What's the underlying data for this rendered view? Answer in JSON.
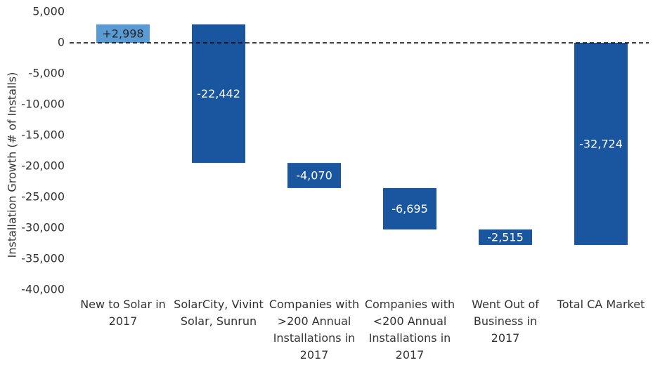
{
  "chart_data": {
    "type": "waterfall",
    "y_label": "Installation Growth (# of Installs)",
    "categories": [
      "New to Solar in 2017",
      "SolarCity, Vivint Solar, Sunrun",
      "Companies with >200 Annual Installations in 2017",
      "Companies with <200 Annual Installations in 2017",
      "Went Out of Business in 2017",
      "Total CA Market"
    ],
    "values": [
      2998,
      -22442,
      -4070,
      -6695,
      -2515,
      -32724
    ],
    "value_labels": [
      "+2,998",
      "-22,442",
      "-4,070",
      "-6,695",
      "-2,515",
      "-32,724"
    ],
    "is_total": [
      false,
      false,
      false,
      false,
      false,
      true
    ],
    "colors": [
      "#5b9bd5",
      "#1a55a0",
      "#1a55a0",
      "#1a55a0",
      "#1a55a0",
      "#1a55a0"
    ],
    "label_colors": [
      "#222222",
      "#ffffff",
      "#ffffff",
      "#ffffff",
      "#ffffff",
      "#ffffff"
    ],
    "ylim": [
      -40000,
      5000
    ],
    "yticks": [
      {
        "value": 5000,
        "label": "5,000"
      },
      0,
      {
        "value": -5000,
        "label": "-5,000"
      },
      {
        "value": -10000,
        "label": "-10,000"
      },
      {
        "value": -15000,
        "label": "-15,000"
      },
      {
        "value": -20000,
        "label": "-20,000"
      },
      {
        "value": -25000,
        "label": "-25,000"
      },
      {
        "value": -30000,
        "label": "-30,000"
      },
      {
        "value": -35000,
        "label": "-35,000"
      },
      {
        "value": -40000,
        "label": "-40,000"
      }
    ],
    "grid": false
  }
}
